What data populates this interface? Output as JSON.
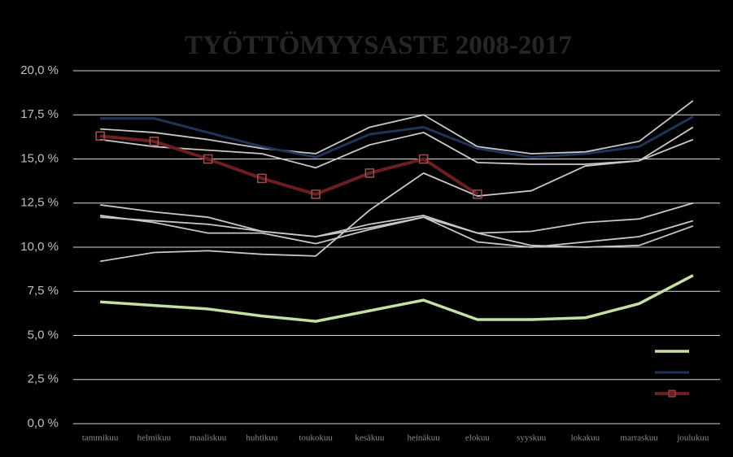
{
  "chart_data": {
    "type": "line",
    "title": "TYÖTTÖMYYSASTE 2008-2017",
    "categories": [
      "tammikuu",
      "helmikuu",
      "maaliskuu",
      "huhtikuu",
      "toukokuu",
      "kesäkuu",
      "heinäkuu",
      "elokuu",
      "syyskuu",
      "lokakuu",
      "marraskuu",
      "joulukuu"
    ],
    "ylim": [
      0,
      20
    ],
    "yticks": [
      {
        "value": 0,
        "label": "0,0 %"
      },
      {
        "value": 2.5,
        "label": "2,5 %"
      },
      {
        "value": 5,
        "label": "5,0 %"
      },
      {
        "value": 7.5,
        "label": "7,5 %"
      },
      {
        "value": 10,
        "label": "10,0 %"
      },
      {
        "value": 12.5,
        "label": "12,5 %"
      },
      {
        "value": 15,
        "label": "15,0 %"
      },
      {
        "value": 17.5,
        "label": "17,5 %"
      },
      {
        "value": 20,
        "label": "20,0 %"
      }
    ],
    "grid": true,
    "series": [
      {
        "color": "#c8c8c8",
        "values": [
          16.7,
          16.5,
          16.1,
          15.6,
          15.3,
          16.8,
          17.5,
          15.7,
          15.3,
          15.4,
          16.0,
          18.3
        ]
      },
      {
        "color": "#c8c8c8",
        "values": [
          16.1,
          15.7,
          15.5,
          15.3,
          14.5,
          15.8,
          16.5,
          14.8,
          14.7,
          14.7,
          14.9,
          16.8
        ]
      },
      {
        "color": "#c8c8c8",
        "values": [
          12.4,
          12.0,
          11.7,
          10.9,
          10.6,
          11.3,
          11.8,
          10.8,
          10.9,
          11.4,
          11.6,
          12.5
        ]
      },
      {
        "color": "#c8c8c8",
        "values": [
          11.8,
          11.4,
          10.8,
          10.8,
          10.2,
          11.0,
          11.7,
          10.3,
          10.0,
          10.3,
          10.6,
          11.5
        ]
      },
      {
        "color": "#c8c8c8",
        "values": [
          11.7,
          11.5,
          11.3,
          10.9,
          10.6,
          11.1,
          11.7,
          10.8,
          10.1,
          10.0,
          10.1,
          11.2
        ]
      },
      {
        "color": "#c8c8c8",
        "values": [
          9.2,
          9.7,
          9.8,
          9.6,
          9.5,
          12.1,
          14.2,
          12.9,
          13.2,
          14.6,
          14.9,
          16.1
        ]
      },
      {
        "color": "#c6e0a0",
        "width": 3.5,
        "legend": true,
        "values": [
          6.9,
          6.7,
          6.5,
          6.1,
          5.8,
          6.4,
          7.0,
          5.9,
          5.9,
          6.0,
          6.8,
          8.4
        ]
      },
      {
        "color": "#1f3558",
        "width": 3,
        "legend": true,
        "values": [
          17.3,
          17.3,
          16.5,
          15.7,
          15.1,
          16.4,
          16.8,
          15.6,
          15.1,
          15.3,
          15.7,
          17.4
        ]
      },
      {
        "color": "#6b1f1f",
        "width": 4,
        "legend": true,
        "markers": true,
        "values": [
          16.3,
          16.0,
          15.0,
          13.9,
          13.0,
          14.2,
          15.0,
          13.0,
          null,
          null,
          null,
          null
        ]
      }
    ]
  }
}
